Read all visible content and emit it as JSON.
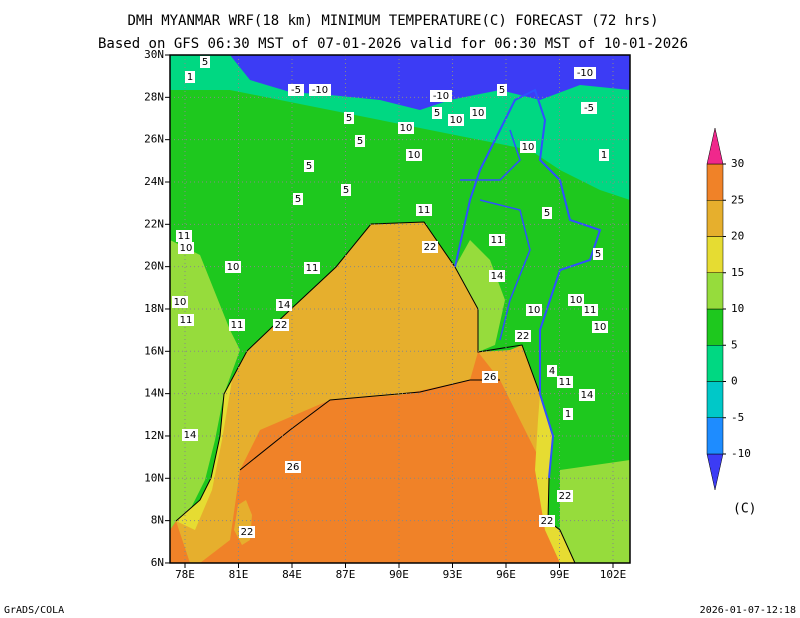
{
  "title": "DMH MYANMAR WRF(18 km) MINIMUM TEMPERATURE(C) FORECAST (72 hrs)",
  "subtitle": "Based on GFS 06:30 MST of 07-01-2026 valid for 06:30 MST of 10-01-2026",
  "map": {
    "lon_ticks": [
      "78E",
      "81E",
      "84E",
      "87E",
      "90E",
      "93E",
      "96E",
      "99E",
      "102E"
    ],
    "lat_ticks": [
      "30N",
      "28N",
      "26N",
      "24N",
      "22N",
      "20N",
      "18N",
      "16N",
      "14N",
      "12N",
      "10N",
      "8N",
      "6N"
    ]
  },
  "colorbar": {
    "levels": [
      -10,
      -5,
      0,
      5,
      10,
      15,
      20,
      25,
      30
    ],
    "colors": [
      "#3c3cf5",
      "#1e8cff",
      "#00c8c8",
      "#00d882",
      "#1ec81e",
      "#96dc3c",
      "#e6dc32",
      "#e6af2d",
      "#f08228",
      "#f0288c"
    ],
    "unit": "(C)"
  },
  "contour_labels": [
    "5",
    "1",
    "-5",
    "-10",
    "-10",
    "5",
    "-10",
    "-5",
    "10",
    "10",
    "5",
    "10",
    "5",
    "5",
    "10",
    "10",
    "1",
    "5",
    "5",
    "5",
    "11",
    "5",
    "22",
    "11",
    "5",
    "14",
    "10",
    "11",
    "14",
    "11",
    "10",
    "11",
    "22",
    "10",
    "11",
    "10",
    "10",
    "22",
    "4",
    "11",
    "26",
    "14",
    "1",
    "14",
    "26",
    "22",
    "22",
    "22",
    "11",
    "10"
  ],
  "footer": {
    "left": "GrADS/COLA",
    "right": "2026-01-07-12:18"
  }
}
